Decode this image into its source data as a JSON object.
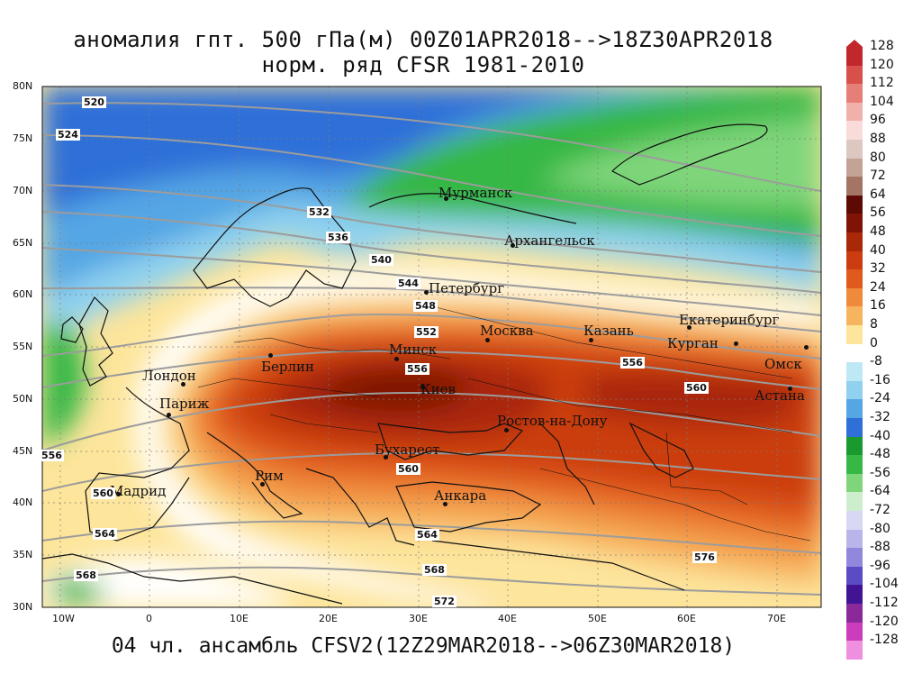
{
  "title_line1": "аномалия гпт. 500 гПа(м) 00Z01APR2018-->18Z30APR2018",
  "title_line2": "норм. ряд CFSR 1981-2010",
  "footer": "04 чл. ансамбль CFSV2(12Z29MAR2018-->06Z30MAR2018)",
  "lat_labels": [
    "80N",
    "75N",
    "70N",
    "65N",
    "60N",
    "55N",
    "50N",
    "45N",
    "40N",
    "35N",
    "30N"
  ],
  "lon_labels": [
    "10W",
    "0",
    "10E",
    "20E",
    "30E",
    "40E",
    "50E",
    "60E",
    "70E"
  ],
  "colorbar_labels": [
    "128",
    "120",
    "112",
    "104",
    "96",
    "88",
    "80",
    "72",
    "64",
    "56",
    "48",
    "40",
    "32",
    "24",
    "16",
    "8",
    "0",
    "-8",
    "-16",
    "-24",
    "-32",
    "-40",
    "-48",
    "-56",
    "-64",
    "-72",
    "-80",
    "-88",
    "-96",
    "-104",
    "-112",
    "-120",
    "-128"
  ],
  "colorbar_colors": [
    "#c1272d",
    "#d8504a",
    "#e57f78",
    "#f0b1ab",
    "#f9dcd9",
    "#dcc8c0",
    "#c4a397",
    "#a47465",
    "#5e0a04",
    "#7f1406",
    "#a92808",
    "#cb3c10",
    "#e05a1e",
    "#ef8a3a",
    "#f7b45f",
    "#fde59b",
    "#ffffff",
    "#bfe8f5",
    "#8fd1ef",
    "#55a6e4",
    "#2e6fd8",
    "#1a9a2e",
    "#36b844",
    "#7fd67a",
    "#cdeecc",
    "#d8d8f4",
    "#b9b5ea",
    "#8f88dc",
    "#5a4cc4",
    "#401493",
    "#8a2a9a",
    "#cc3dbb",
    "#ef8fe0"
  ],
  "cities": [
    {
      "name": "Мурманск"
    },
    {
      "name": "Архангельск"
    },
    {
      "name": "Петербург"
    },
    {
      "name": "Москва"
    },
    {
      "name": "Казань"
    },
    {
      "name": "Екатеринбург"
    },
    {
      "name": "Курган"
    },
    {
      "name": "Омск"
    },
    {
      "name": "Астана"
    },
    {
      "name": "Минск"
    },
    {
      "name": "Берлин"
    },
    {
      "name": "Лондон"
    },
    {
      "name": "Париж"
    },
    {
      "name": "Киев"
    },
    {
      "name": "Ростов-на-Дону"
    },
    {
      "name": "Бухарест"
    },
    {
      "name": "Рим"
    },
    {
      "name": "Мадрид"
    },
    {
      "name": "Анкара"
    }
  ],
  "contour_labels": [
    "520",
    "524",
    "532",
    "536",
    "540",
    "544",
    "548",
    "552",
    "556",
    "556",
    "560",
    "556",
    "560",
    "560",
    "564",
    "564",
    "568",
    "568",
    "572",
    "576"
  ]
}
